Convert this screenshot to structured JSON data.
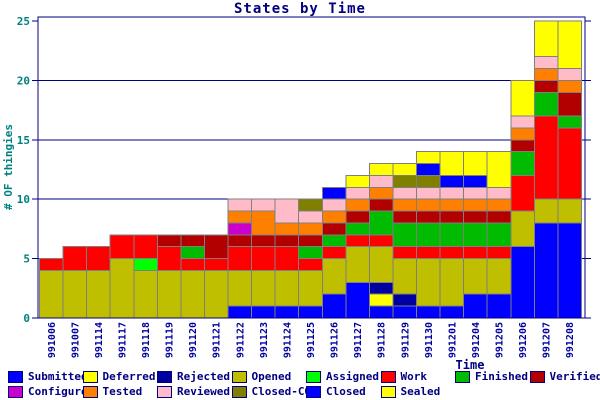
{
  "chart_data": {
    "type": "bar",
    "stacked": true,
    "title": "States by Time",
    "xlabel": "Time",
    "ylabel": "# OF thingies",
    "ylim": [
      0,
      25
    ],
    "yticks": [
      0,
      5,
      10,
      15,
      20,
      25
    ],
    "grid_values": [
      5,
      10,
      15,
      20
    ],
    "legend_position": "bottom",
    "categories": [
      "991006",
      "991007",
      "991114",
      "991117",
      "991118",
      "991119",
      "991120",
      "991121",
      "991122",
      "991123",
      "991124",
      "991125",
      "991126",
      "991127",
      "991128",
      "991129",
      "991130",
      "991201",
      "991204",
      "991205",
      "991206",
      "991207",
      "991208"
    ],
    "series": [
      {
        "name": "Submitted",
        "color": "#0000FF",
        "values": [
          0,
          0,
          0,
          0,
          0,
          0,
          0,
          0,
          1,
          1,
          1,
          1,
          2,
          3,
          1,
          1,
          1,
          1,
          2,
          2,
          6,
          8,
          8
        ]
      },
      {
        "name": "Deferred",
        "color": "#FFFF00",
        "values": [
          0,
          0,
          0,
          0,
          0,
          0,
          0,
          0,
          0,
          0,
          0,
          0,
          0,
          0,
          1,
          0,
          0,
          0,
          0,
          0,
          0,
          0,
          0
        ]
      },
      {
        "name": "Rejected",
        "color": "#0000A0",
        "values": [
          0,
          0,
          0,
          0,
          0,
          0,
          0,
          0,
          0,
          0,
          0,
          0,
          0,
          0,
          1,
          1,
          0,
          0,
          0,
          0,
          0,
          0,
          0
        ]
      },
      {
        "name": "Opened",
        "color": "#BFBF00",
        "values": [
          4,
          4,
          4,
          5,
          4,
          4,
          4,
          4,
          3,
          3,
          3,
          3,
          3,
          3,
          3,
          3,
          4,
          4,
          3,
          3,
          3,
          2,
          2
        ]
      },
      {
        "name": "Assigned",
        "color": "#00FF00",
        "values": [
          0,
          0,
          0,
          0,
          1,
          0,
          0,
          0,
          0,
          0,
          0,
          0,
          0,
          0,
          0,
          0,
          0,
          0,
          0,
          0,
          0,
          0,
          0
        ]
      },
      {
        "name": "Work",
        "color": "#FF0000",
        "values": [
          1,
          2,
          2,
          2,
          2,
          2,
          1,
          1,
          2,
          2,
          2,
          1,
          1,
          1,
          1,
          1,
          1,
          1,
          1,
          1,
          3,
          7,
          6
        ]
      },
      {
        "name": "Finished",
        "color": "#00BB00",
        "values": [
          0,
          0,
          0,
          0,
          0,
          0,
          1,
          0,
          0,
          0,
          0,
          1,
          1,
          1,
          2,
          2,
          2,
          2,
          2,
          2,
          2,
          2,
          1
        ]
      },
      {
        "name": "Verified",
        "color": "#B20000",
        "values": [
          0,
          0,
          0,
          0,
          0,
          1,
          1,
          2,
          1,
          1,
          1,
          1,
          1,
          1,
          1,
          1,
          1,
          1,
          1,
          1,
          1,
          1,
          2
        ]
      },
      {
        "name": "Configured",
        "color": "#CC00CC",
        "values": [
          0,
          0,
          0,
          0,
          0,
          0,
          0,
          0,
          1,
          0,
          0,
          0,
          0,
          0,
          0,
          0,
          0,
          0,
          0,
          0,
          0,
          0,
          0
        ]
      },
      {
        "name": "Tested",
        "color": "#FF8000",
        "values": [
          0,
          0,
          0,
          0,
          0,
          0,
          0,
          0,
          1,
          2,
          1,
          1,
          1,
          1,
          1,
          1,
          1,
          1,
          1,
          1,
          1,
          1,
          1
        ]
      },
      {
        "name": "Reviewed",
        "color": "#FFBCC8",
        "values": [
          0,
          0,
          0,
          0,
          0,
          0,
          0,
          0,
          1,
          1,
          2,
          1,
          1,
          1,
          1,
          1,
          1,
          1,
          1,
          1,
          1,
          1,
          1
        ]
      },
      {
        "name": "Closed-CO",
        "color": "#7F7F00",
        "values": [
          0,
          0,
          0,
          0,
          0,
          0,
          0,
          0,
          0,
          0,
          0,
          1,
          0,
          0,
          0,
          1,
          1,
          0,
          0,
          0,
          0,
          0,
          0
        ]
      },
      {
        "name": "Closed",
        "color": "#0000FF",
        "values": [
          0,
          0,
          0,
          0,
          0,
          0,
          0,
          0,
          0,
          0,
          0,
          0,
          1,
          0,
          0,
          0,
          1,
          1,
          1,
          0,
          0,
          0,
          0
        ]
      },
      {
        "name": "Sealed",
        "color": "#FFFF00",
        "values": [
          0,
          0,
          0,
          0,
          0,
          0,
          0,
          0,
          0,
          0,
          0,
          0,
          0,
          1,
          1,
          1,
          1,
          2,
          2,
          3,
          3,
          3,
          4
        ]
      }
    ],
    "legend_order": [
      "Submitted",
      "Deferred",
      "Rejected",
      "Opened",
      "Assigned",
      "Work",
      "Finished",
      "Verified",
      "Configured",
      "Tested",
      "Reviewed",
      "Closed-CO",
      "Closed",
      "Sealed"
    ]
  },
  "colors": {
    "background": "#FFFFFF",
    "border": "#000080",
    "grid": "#000080",
    "bar_outline": "#7F7F7F",
    "title_text": "#000080",
    "y_tick_text": "#008080",
    "x_tick_text": "#0000A0",
    "legend_text": "#000080"
  }
}
